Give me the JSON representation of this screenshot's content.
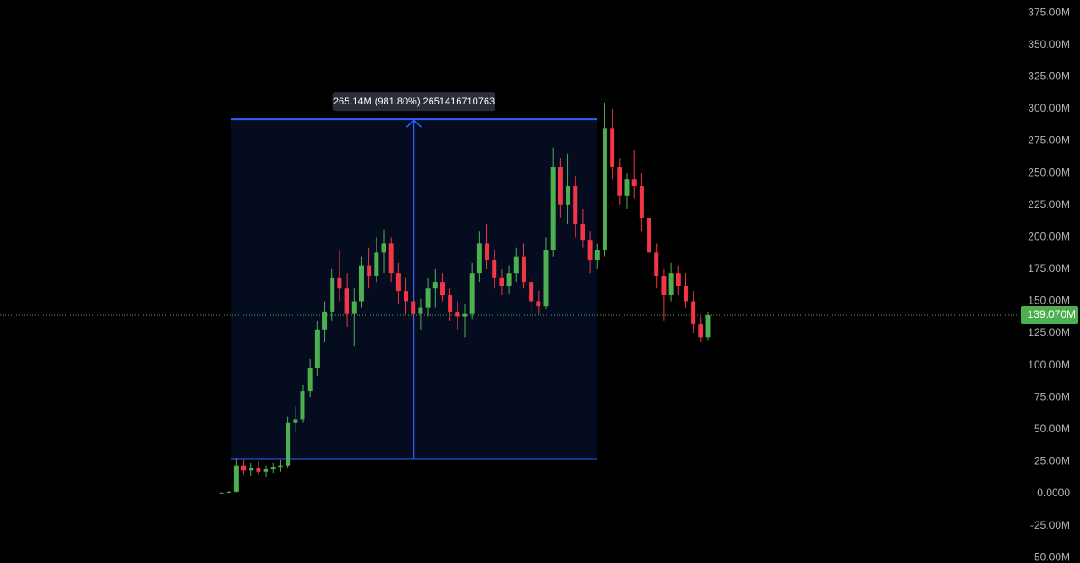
{
  "chart_data": {
    "type": "candlestick",
    "open": [
      0.5,
      0.8,
      1.5,
      22,
      18,
      20,
      17,
      19,
      21,
      22,
      55,
      58,
      80,
      98,
      128,
      142,
      168,
      160,
      140,
      150,
      178,
      170,
      188,
      195,
      172,
      158,
      150,
      140,
      145,
      160,
      165,
      155,
      142,
      138,
      140,
      172,
      195,
      182,
      168,
      162,
      172,
      185,
      165,
      150,
      146,
      190,
      255,
      225,
      240,
      210,
      198,
      182,
      190,
      285,
      255,
      232,
      245,
      240,
      215,
      188,
      170,
      155,
      172,
      162,
      150,
      132,
      122
    ],
    "high": [
      1,
      2,
      28,
      26,
      24,
      25,
      22,
      24,
      26,
      60,
      68,
      85,
      105,
      135,
      150,
      175,
      190,
      172,
      160,
      185,
      192,
      200,
      206,
      200,
      180,
      168,
      158,
      152,
      168,
      175,
      172,
      160,
      150,
      148,
      180,
      205,
      210,
      190,
      175,
      178,
      192,
      195,
      170,
      158,
      200,
      270,
      262,
      265,
      248,
      222,
      205,
      195,
      305,
      300,
      262,
      250,
      268,
      250,
      225,
      195,
      175,
      180,
      178,
      172,
      158,
      138,
      142
    ],
    "low": [
      0,
      0.5,
      1,
      15,
      14,
      15,
      13,
      16,
      17,
      20,
      48,
      55,
      75,
      92,
      118,
      135,
      150,
      130,
      115,
      145,
      160,
      165,
      172,
      165,
      148,
      140,
      132,
      128,
      138,
      145,
      150,
      135,
      128,
      122,
      136,
      165,
      175,
      160,
      155,
      156,
      165,
      160,
      142,
      140,
      144,
      185,
      215,
      210,
      200,
      192,
      172,
      175,
      185,
      245,
      225,
      222,
      230,
      205,
      180,
      160,
      135,
      150,
      155,
      145,
      125,
      118,
      120
    ],
    "close": [
      0.8,
      1.5,
      22,
      18,
      20,
      17,
      19,
      21,
      22,
      55,
      58,
      80,
      98,
      128,
      142,
      168,
      160,
      140,
      150,
      178,
      170,
      188,
      195,
      172,
      158,
      150,
      140,
      145,
      160,
      165,
      155,
      142,
      138,
      140,
      172,
      195,
      182,
      168,
      162,
      172,
      185,
      165,
      150,
      146,
      190,
      255,
      225,
      240,
      210,
      198,
      182,
      190,
      285,
      255,
      232,
      245,
      240,
      215,
      188,
      170,
      155,
      172,
      162,
      150,
      132,
      122,
      139.07
    ],
    "up_color": "#4caf50",
    "down_color": "#f23645",
    "ylim": [
      -54.1,
      385
    ],
    "yticks": [
      {
        "value": 375,
        "label": "375.00M"
      },
      {
        "value": 350,
        "label": "350.00M"
      },
      {
        "value": 325,
        "label": "325.00M"
      },
      {
        "value": 300,
        "label": "300.00M"
      },
      {
        "value": 275,
        "label": "275.00M"
      },
      {
        "value": 250,
        "label": "250.00M"
      },
      {
        "value": 225,
        "label": "225.00M"
      },
      {
        "value": 200,
        "label": "200.00M"
      },
      {
        "value": 175,
        "label": "175.00M"
      },
      {
        "value": 150,
        "label": "150.00M"
      },
      {
        "value": 125,
        "label": "125.00M"
      },
      {
        "value": 100,
        "label": "100.00M"
      },
      {
        "value": 75,
        "label": "75.00M"
      },
      {
        "value": 50,
        "label": "50.00M"
      },
      {
        "value": 25,
        "label": "25.00M"
      },
      {
        "value": 0,
        "label": "0.0000"
      },
      {
        "value": -25,
        "label": "-25.00M"
      },
      {
        "value": -50,
        "label": "-50.00M"
      }
    ],
    "last_price": {
      "value": 139.07,
      "label": "139.070M"
    },
    "measure": {
      "label": "265.14M (981.80%) 2651416710763",
      "from": 27.01,
      "to": 292.15,
      "color": "#2962ff"
    }
  }
}
